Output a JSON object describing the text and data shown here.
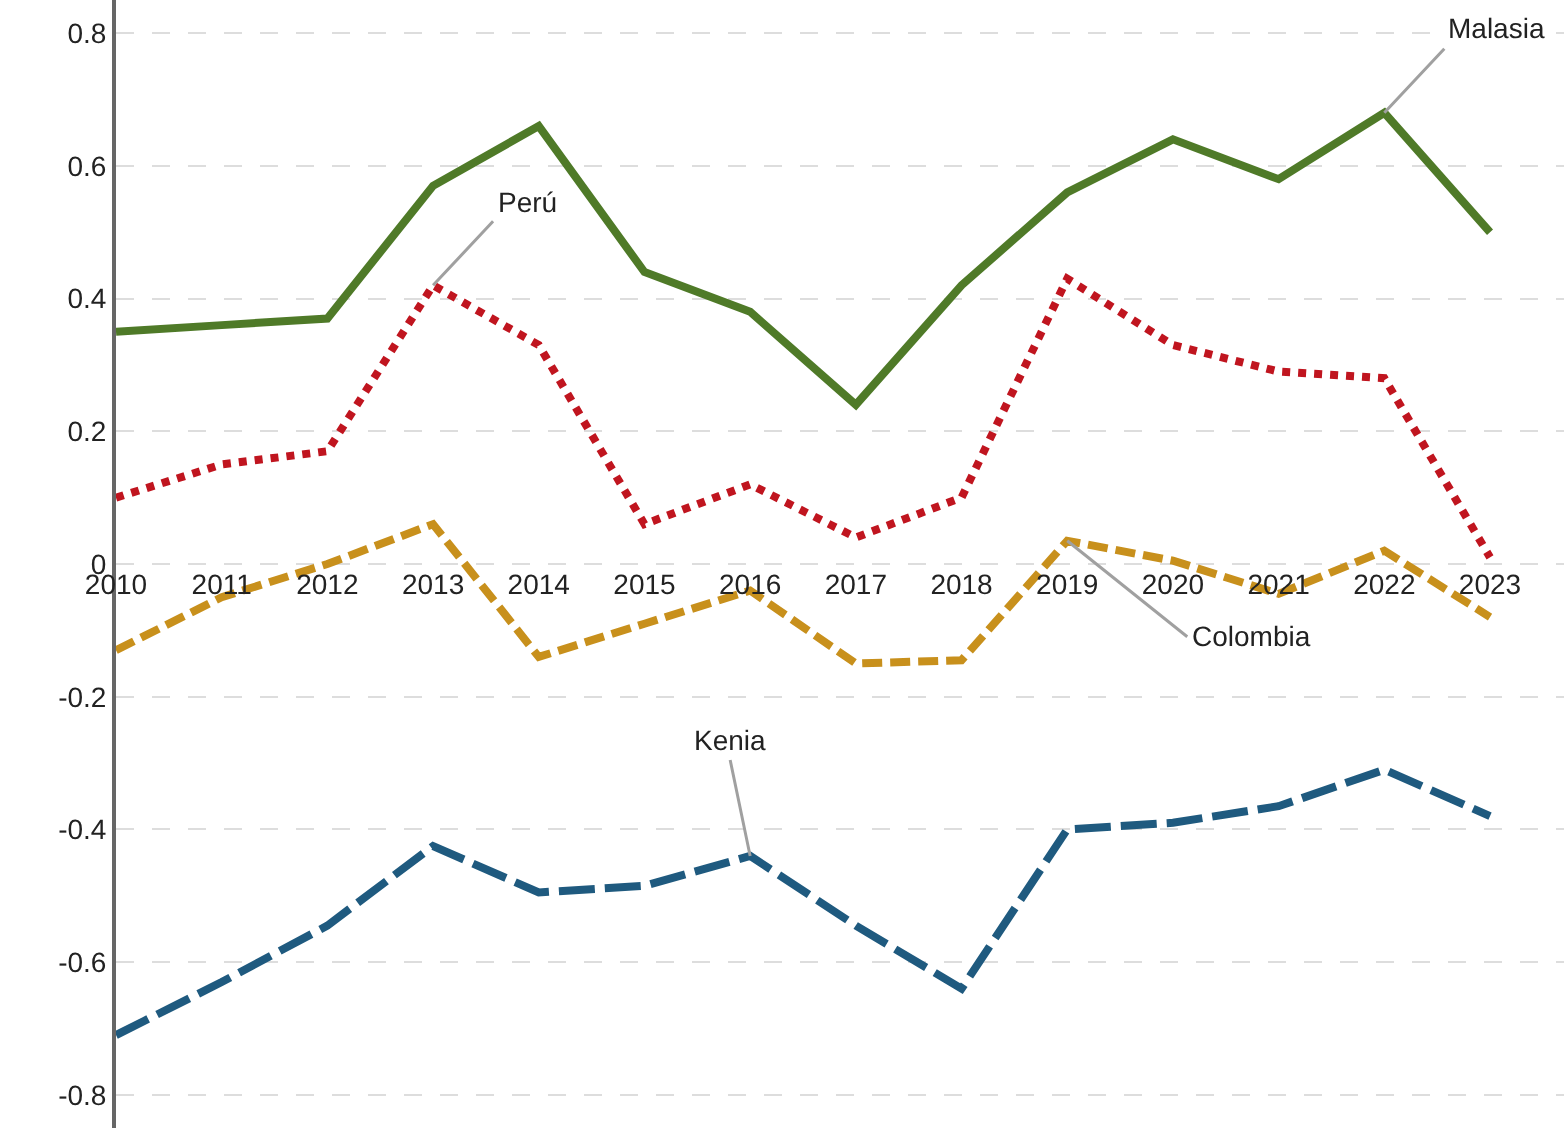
{
  "chart_data": {
    "type": "line",
    "x": [
      2010,
      2011,
      2012,
      2013,
      2014,
      2015,
      2016,
      2017,
      2018,
      2019,
      2020,
      2021,
      2022,
      2023
    ],
    "xlim": [
      2010,
      2023.7
    ],
    "xticks": [
      2010,
      2011,
      2012,
      2013,
      2014,
      2015,
      2016,
      2017,
      2018,
      2019,
      2020,
      2021,
      2022,
      2023
    ],
    "ylim": [
      -0.85,
      0.85
    ],
    "yticks": [
      {
        "value": -0.8,
        "label": "-0.8"
      },
      {
        "value": -0.6,
        "label": "-0.6"
      },
      {
        "value": -0.4,
        "label": "-0.4"
      },
      {
        "value": -0.2,
        "label": "-0.2"
      },
      0,
      {
        "value": 0.2,
        "label": "0.2"
      },
      {
        "value": 0.4,
        "label": "0.4"
      },
      {
        "value": 0.6,
        "label": "0.6"
      },
      {
        "value": 0.8,
        "label": "0.8"
      }
    ],
    "grid": "y",
    "legend": false,
    "marker": "none",
    "series": [
      {
        "name": "Malasia",
        "color": "#4f7a28",
        "line_style": "solid",
        "values": [
          0.35,
          0.36,
          0.37,
          0.57,
          0.66,
          0.44,
          0.38,
          0.24,
          0.42,
          0.56,
          0.64,
          0.58,
          0.68,
          0.5
        ]
      },
      {
        "name": "Perú",
        "color": "#c0151f",
        "line_style": "dotted",
        "values": [
          0.1,
          0.15,
          0.17,
          0.42,
          0.33,
          0.06,
          0.12,
          0.04,
          0.1,
          0.43,
          0.33,
          0.29,
          0.28,
          0.01
        ]
      },
      {
        "name": "Colombia",
        "color": "#c8901c",
        "line_style": "dashed",
        "values": [
          -0.13,
          -0.05,
          0.0,
          0.06,
          -0.14,
          -0.09,
          -0.04,
          -0.15,
          -0.145,
          0.035,
          0.005,
          -0.045,
          0.02,
          -0.08
        ]
      },
      {
        "name": "Kenia",
        "color": "#1f5a7f",
        "line_style": "longdash",
        "values": [
          -0.71,
          -0.63,
          -0.545,
          -0.425,
          -0.495,
          -0.485,
          -0.44,
          -0.545,
          -0.64,
          -0.4,
          -0.39,
          -0.365,
          -0.31,
          -0.38
        ]
      }
    ]
  }
}
